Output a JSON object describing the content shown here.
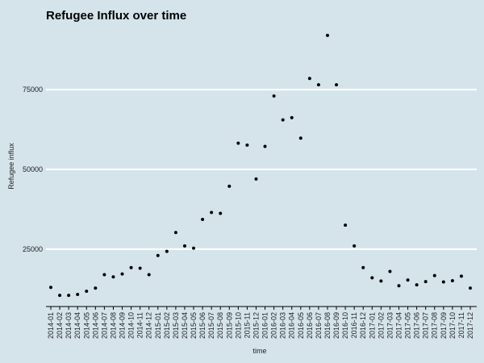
{
  "chart_data": {
    "type": "scatter",
    "title": "Refugee Influx over time",
    "xlabel": "time",
    "ylabel": "Refugee influx",
    "ylim": [
      7000,
      95000
    ],
    "y_ticks": [
      25000,
      50000,
      75000
    ],
    "y_tick_labels": [
      "25000",
      "50000",
      "75000"
    ],
    "grid": "horizontal-major",
    "background": "#d5e4eb",
    "point_color": "#000000",
    "categories": [
      "2014-01",
      "2014-02",
      "2014-03",
      "2014-04",
      "2014-05",
      "2014-06",
      "2014-07",
      "2014-08",
      "2014-09",
      "2014-10",
      "2014-11",
      "2014-12",
      "2015-01",
      "2015-02",
      "2015-03",
      "2015-04",
      "2015-05",
      "2015-06",
      "2015-07",
      "2015-08",
      "2015-09",
      "2015-10",
      "2015-11",
      "2015-12",
      "2016-01",
      "2016-02",
      "2016-03",
      "2016-04",
      "2016-05",
      "2016-06",
      "2016-07",
      "2016-08",
      "2016-09",
      "2016-10",
      "2016-11",
      "2016-12",
      "2017-01",
      "2017-02",
      "2017-03",
      "2017-04",
      "2017-05",
      "2017-06",
      "2017-07",
      "2017-08",
      "2017-09",
      "2017-10",
      "2017-11",
      "2017-12"
    ],
    "values": [
      13000,
      10500,
      10500,
      10800,
      11800,
      12800,
      17000,
      16300,
      17200,
      19200,
      19000,
      17000,
      23000,
      24300,
      30200,
      26000,
      25300,
      34300,
      36500,
      36200,
      44700,
      58200,
      57600,
      47000,
      57200,
      73000,
      65500,
      66200,
      59800,
      78500,
      76500,
      92000,
      76500,
      32500,
      26000,
      19200,
      16000,
      15000,
      18000,
      13500,
      15300,
      13800,
      14800,
      16700,
      14700,
      15100,
      16500,
      12800
    ]
  }
}
